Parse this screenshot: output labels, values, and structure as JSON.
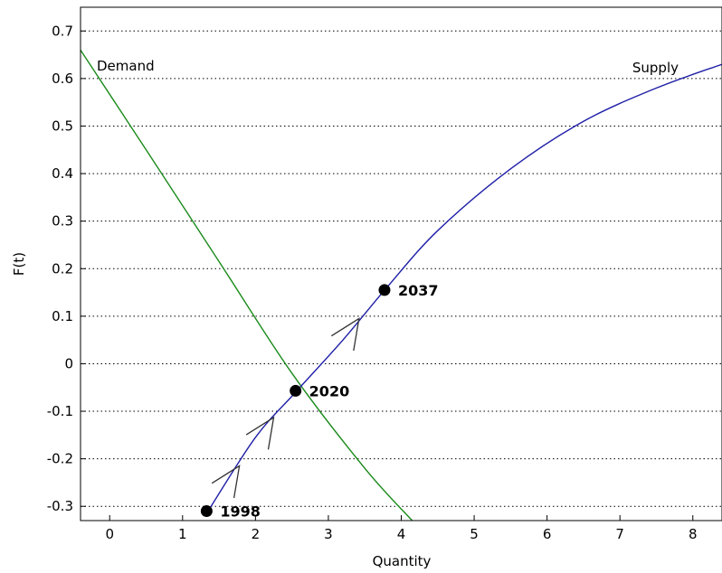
{
  "chart_data": {
    "type": "line",
    "title": "",
    "xlabel": "Quantity",
    "ylabel": "F(t)",
    "xlim": [
      -0.4,
      8.4
    ],
    "ylim": [
      -0.33,
      0.75
    ],
    "x_ticks": [
      0,
      1,
      2,
      3,
      4,
      5,
      6,
      7,
      8
    ],
    "y_ticks": [
      -0.3,
      -0.2,
      -0.1,
      0,
      0.1,
      0.2,
      0.3,
      0.4,
      0.5,
      0.6,
      0.7
    ],
    "x_tick_labels": [
      "0",
      "1",
      "2",
      "3",
      "4",
      "5",
      "6",
      "7",
      "8"
    ],
    "y_tick_labels": [
      "-0.3",
      "-0.2",
      "-0.1",
      "0",
      "0.1",
      "0.2",
      "0.3",
      "0.4",
      "0.5",
      "0.6",
      "0.7"
    ],
    "grid": "horizontal-dotted",
    "series": [
      {
        "name": "Demand",
        "color": "#1a8a1a",
        "x": [
          -0.4,
          0.5,
          1.5,
          2.5,
          3.5,
          4.15
        ],
        "y": [
          0.66,
          0.45,
          0.215,
          -0.02,
          -0.22,
          -0.33
        ]
      },
      {
        "name": "Supply",
        "color": "#1f1fa8",
        "x": [
          1.35,
          2.0,
          2.55,
          3.2,
          3.8,
          4.5,
          5.5,
          6.5,
          7.5,
          8.4
        ],
        "y": [
          -0.31,
          -0.155,
          -0.06,
          0.05,
          0.16,
          0.28,
          0.41,
          0.51,
          0.58,
          0.63
        ]
      }
    ],
    "points": [
      {
        "label": "1998",
        "x": 1.33,
        "y": -0.31
      },
      {
        "label": "2020",
        "x": 2.55,
        "y": -0.057
      },
      {
        "label": "2037",
        "x": 3.77,
        "y": 0.155
      }
    ],
    "arrows": [
      {
        "x": 1.78,
        "y": -0.215
      },
      {
        "x": 2.25,
        "y": -0.113
      },
      {
        "x": 3.42,
        "y": 0.095
      }
    ]
  }
}
